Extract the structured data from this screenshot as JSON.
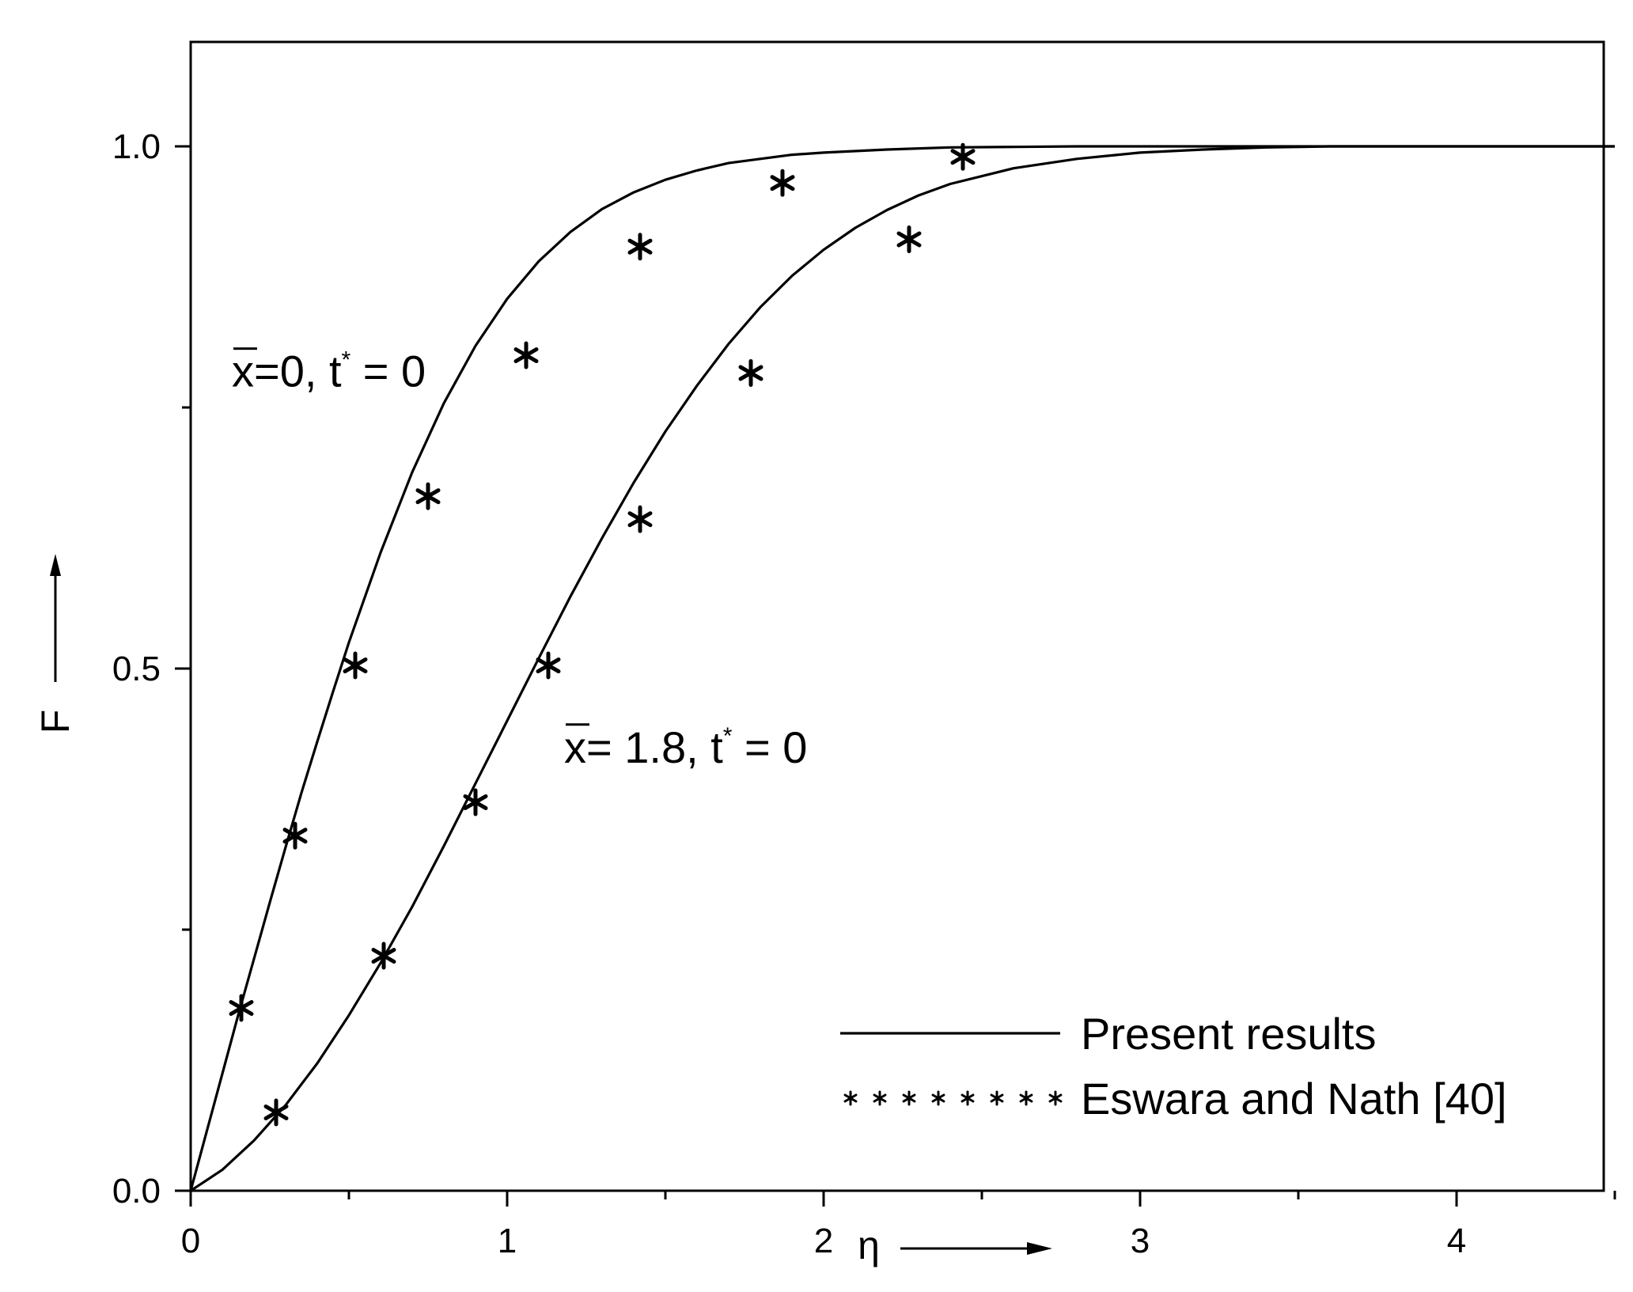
{
  "chart_data": {
    "type": "line",
    "xlabel": "η",
    "ylabel": "F",
    "xlim": [
      0,
      4.5
    ],
    "ylim": [
      0,
      1.1
    ],
    "x_ticks": [
      0,
      1,
      2,
      3,
      4
    ],
    "x_minor_ticks": [
      0.5,
      1.5,
      2.5,
      3.5,
      4.5
    ],
    "y_ticks": [
      0.0,
      0.5,
      1.0
    ],
    "y_tick_labels": [
      "0.0",
      "0.5",
      "1.0"
    ],
    "y_minor_ticks": [
      0.25,
      0.75
    ],
    "grid": false,
    "legend_position": "bottom-right",
    "legend": [
      {
        "label": "Present results",
        "style": "solid-line"
      },
      {
        "label": "Eswara and Nath [40]",
        "style": "star-markers"
      }
    ],
    "annotations": [
      {
        "series": "x̄=0, t* = 0",
        "lead": "x",
        "rest": "=0, t",
        "sup": "*",
        "tail": " = 0",
        "data_x": 0.13,
        "data_y": 0.77
      },
      {
        "series": "x̄= 1.8, t* = 0",
        "lead": "x",
        "rest": "= 1.8, t",
        "sup": "*",
        "tail": " = 0",
        "data_x": 1.18,
        "data_y": 0.41
      }
    ],
    "series": [
      {
        "curve_x": [
          0,
          0.05,
          0.1,
          0.15,
          0.2,
          0.25,
          0.3,
          0.35,
          0.4,
          0.45,
          0.5,
          0.6,
          0.7,
          0.8,
          0.9,
          1.0,
          1.1,
          1.2,
          1.3,
          1.4,
          1.5,
          1.6,
          1.7,
          1.8,
          1.9,
          2.0,
          2.2,
          2.4,
          2.6,
          2.8,
          3.0,
          3.3,
          3.6,
          4.0,
          4.5
        ],
        "curve_y": [
          0,
          0.056,
          0.112,
          0.168,
          0.222,
          0.276,
          0.329,
          0.381,
          0.43,
          0.478,
          0.525,
          0.611,
          0.688,
          0.754,
          0.809,
          0.854,
          0.89,
          0.918,
          0.94,
          0.956,
          0.968,
          0.977,
          0.984,
          0.988,
          0.992,
          0.994,
          0.997,
          0.999,
          0.9995,
          1.0,
          1.0,
          1.0,
          1.0,
          1.0,
          1.0
        ],
        "marker_x": [
          0.16,
          0.33,
          0.52,
          0.75,
          1.06,
          1.42,
          1.87,
          2.44
        ],
        "marker_y": [
          0.175,
          0.34,
          0.503,
          0.665,
          0.8,
          0.904,
          0.965,
          0.99
        ]
      },
      {
        "curve_x": [
          0,
          0.1,
          0.2,
          0.3,
          0.4,
          0.5,
          0.6,
          0.7,
          0.8,
          0.9,
          1.0,
          1.1,
          1.2,
          1.3,
          1.4,
          1.5,
          1.6,
          1.7,
          1.8,
          1.9,
          2.0,
          2.1,
          2.2,
          2.3,
          2.4,
          2.6,
          2.8,
          3.0,
          3.2,
          3.4,
          3.6,
          4.0,
          4.5
        ],
        "curve_y": [
          0,
          0.02,
          0.048,
          0.082,
          0.122,
          0.168,
          0.218,
          0.272,
          0.33,
          0.39,
          0.45,
          0.51,
          0.569,
          0.625,
          0.678,
          0.727,
          0.771,
          0.811,
          0.846,
          0.876,
          0.901,
          0.922,
          0.939,
          0.953,
          0.964,
          0.979,
          0.988,
          0.994,
          0.997,
          0.999,
          1.0,
          1.0,
          1.0
        ],
        "marker_x": [
          0.27,
          0.61,
          0.9,
          1.13,
          1.42,
          1.77,
          2.27
        ],
        "marker_y": [
          0.075,
          0.225,
          0.372,
          0.503,
          0.643,
          0.783,
          0.911
        ]
      }
    ]
  }
}
